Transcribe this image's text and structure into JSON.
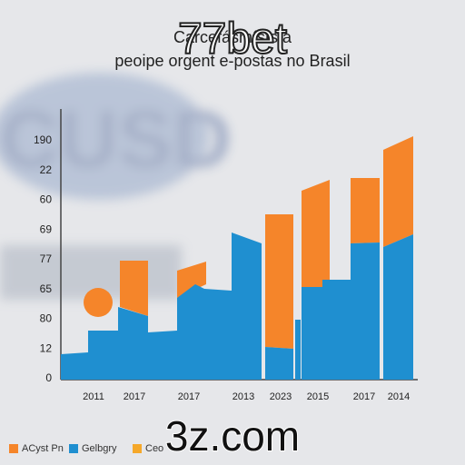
{
  "header": {
    "title_lines": [
      "Carcefásmístsfa",
      "peoipe orgent e-postas no Brasil"
    ],
    "watermark_top": "77bet",
    "watermark_bottom": "3z.com"
  },
  "y_axis_labels": [
    "190",
    "22",
    "60",
    "69",
    "77",
    "65",
    "80",
    "12",
    "0"
  ],
  "x_axis_labels": [
    "2011",
    "2017",
    "2017",
    "2013",
    "2023",
    "2015",
    "2017",
    "2014"
  ],
  "legend": [
    "ACyst Pn",
    "Gelbgry",
    "Ceo"
  ]
}
